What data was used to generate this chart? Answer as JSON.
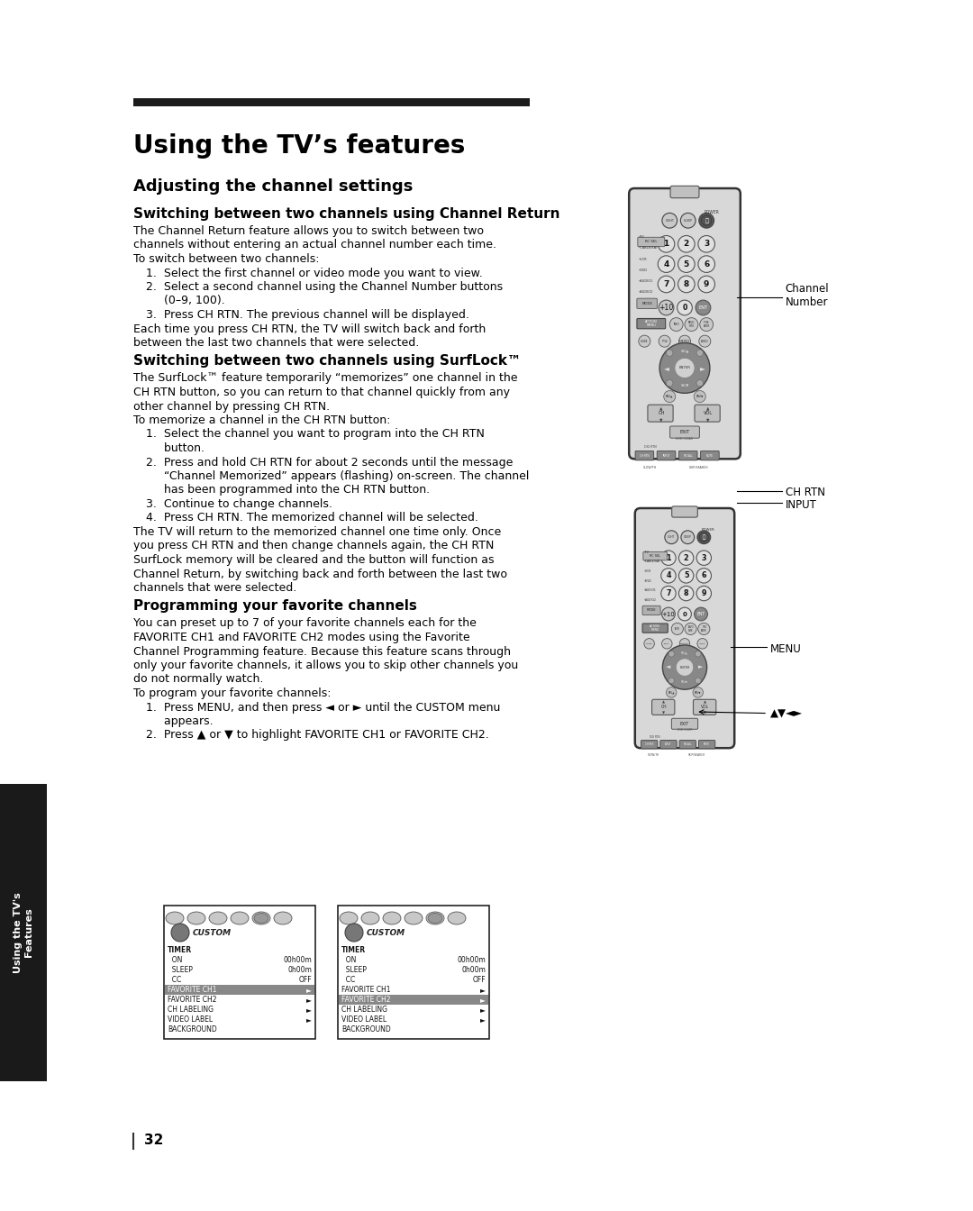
{
  "page_bg": "#ffffff",
  "sidebar_bg": "#1a1a1a",
  "sidebar_text_color": "#ffffff",
  "sidebar_text": "Using the TV's\nFeatures",
  "header_bar_color": "#1a1a1a",
  "main_title": "Using the TV’s features",
  "section_title": "Adjusting the channel settings",
  "subsection1": "Switching between two channels using Channel Return",
  "subsection2": "Switching between two channels using SurfLock™",
  "subsection3": "Programming your favorite channels",
  "page_number": "32",
  "label_channel_number": "Channel\nNumber",
  "label_ch_rtn": "CH RTN",
  "label_input": "INPUT",
  "label_menu": "MENU",
  "label_arrows": "▲▼◄►",
  "text_color": "#000000",
  "remote_body": "#d0d0d0",
  "remote_edge": "#555555",
  "remote_btn_light": "#e0e0e0",
  "remote_btn_dark": "#888888",
  "remote_btn_edge": "#666666"
}
